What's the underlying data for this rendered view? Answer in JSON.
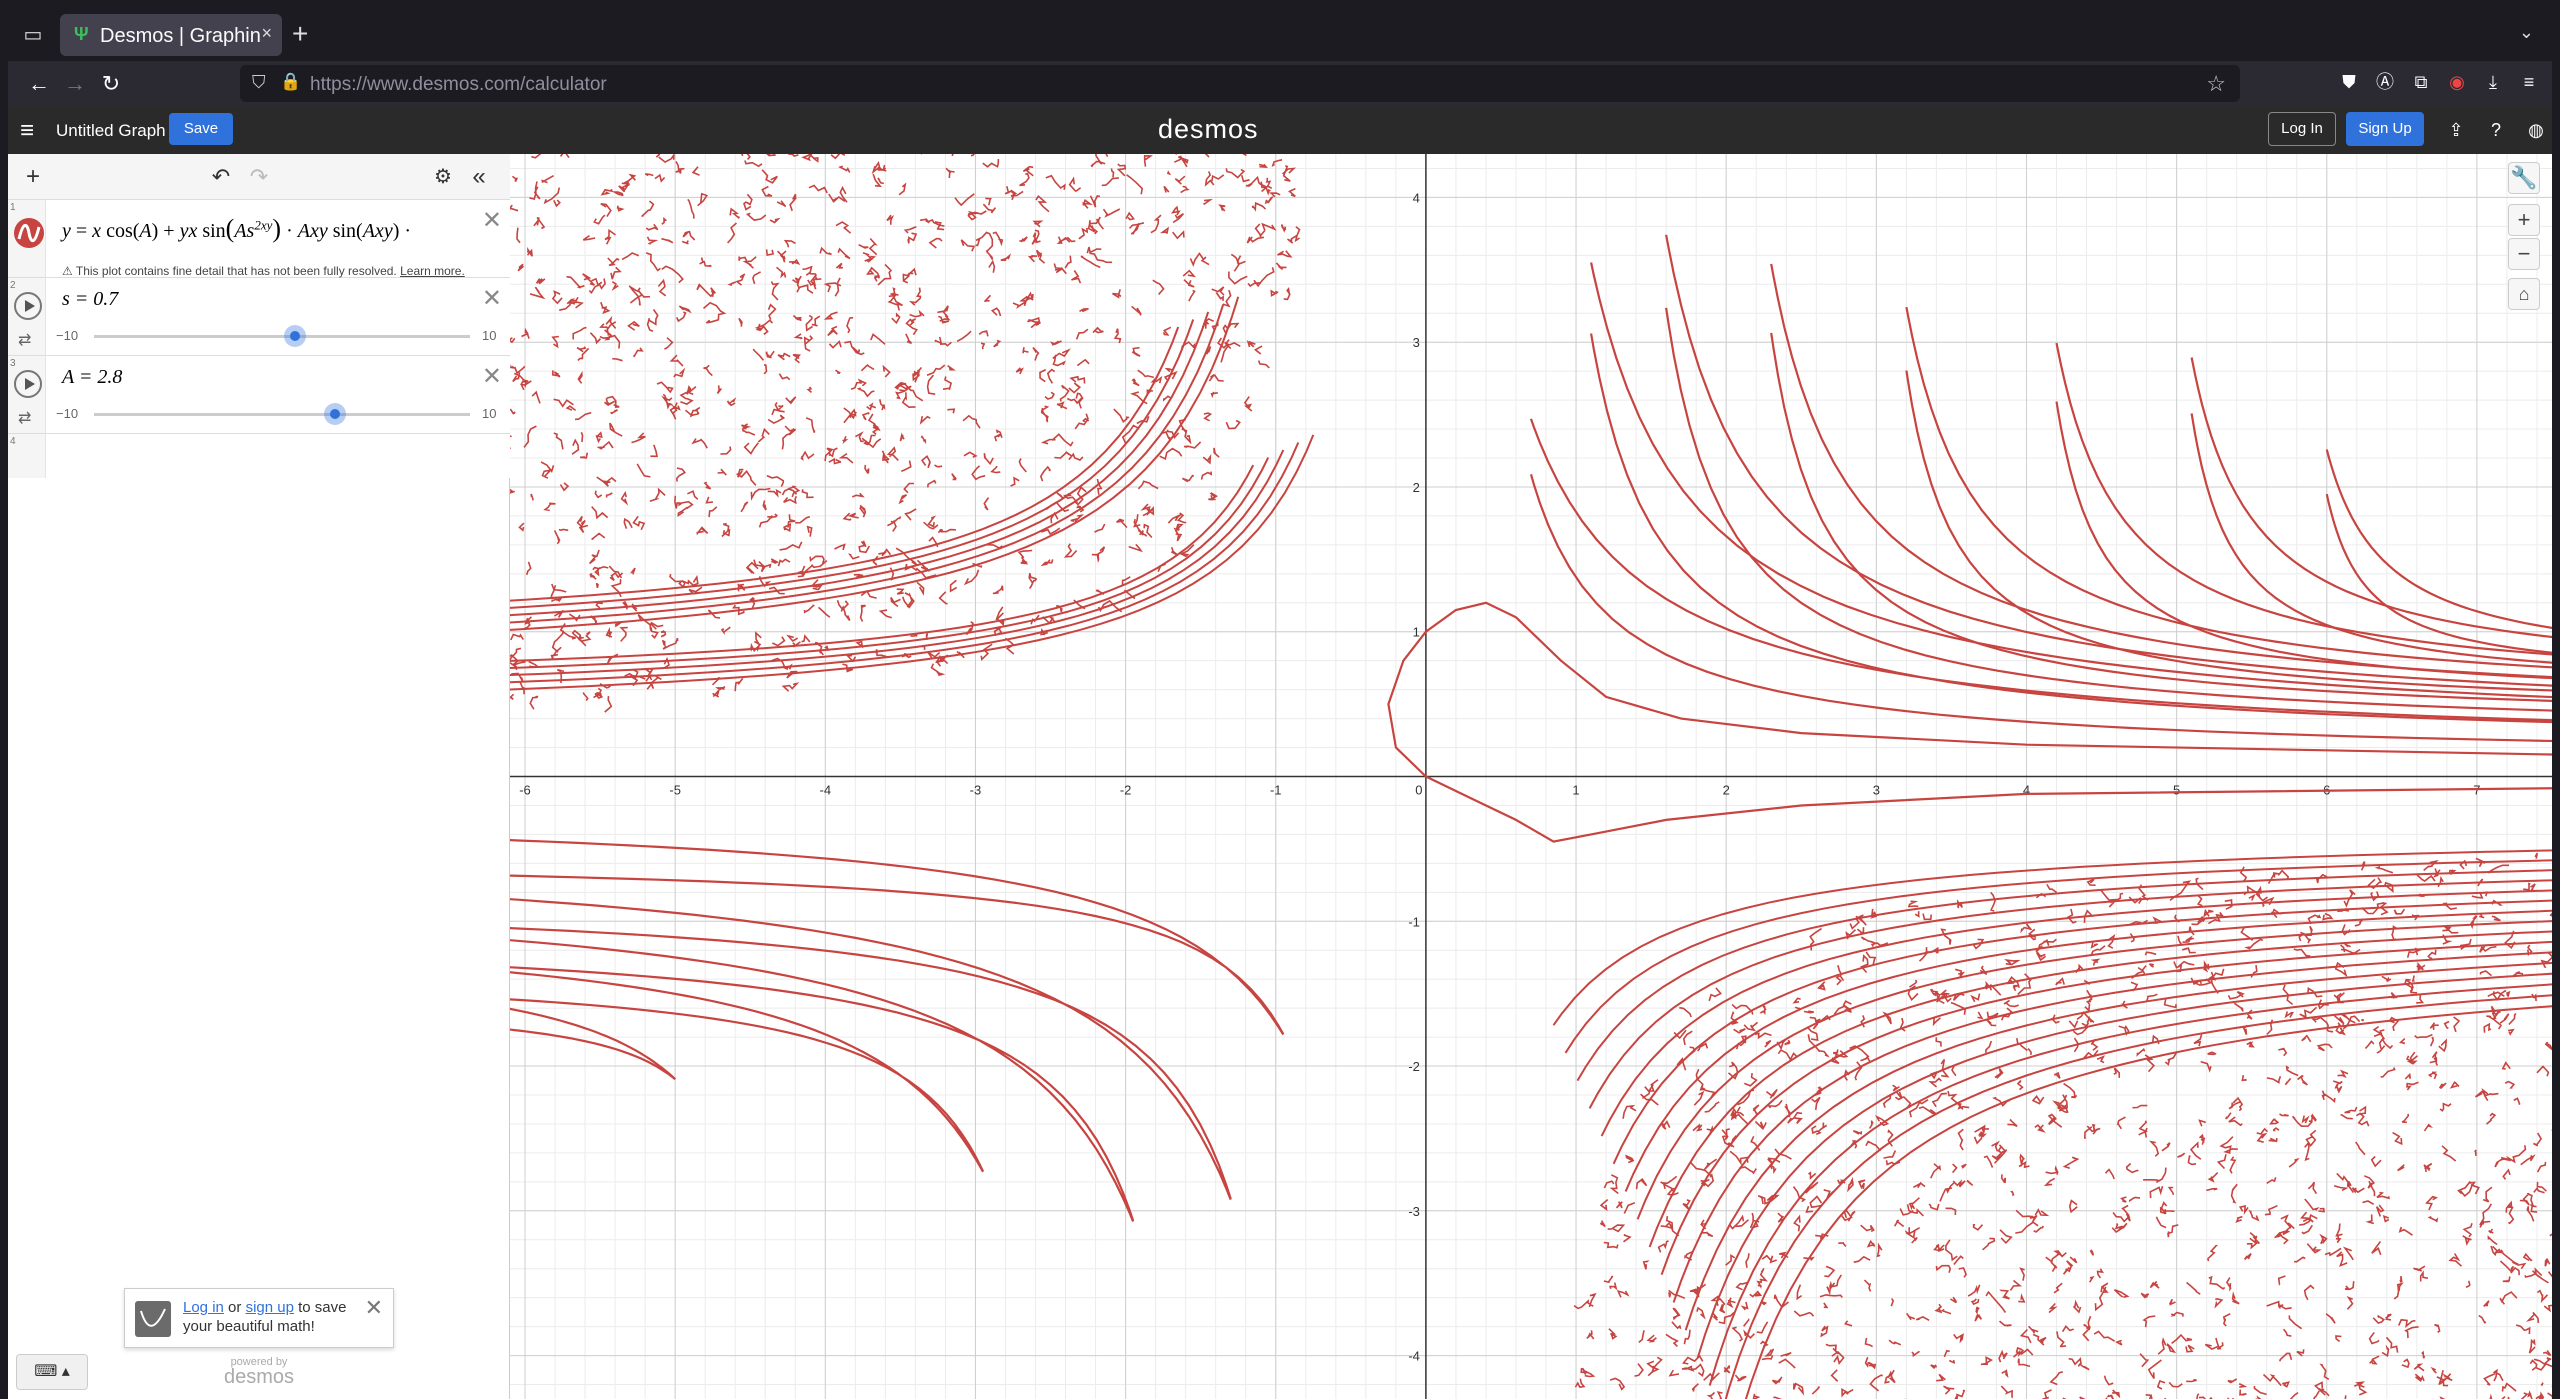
{
  "browser": {
    "tab_title": "Desmos | Graphing",
    "tab_close": "×",
    "new_tab": "+",
    "url_host": "https://www.desmos.com",
    "url_path": "/calculator"
  },
  "header": {
    "graph_title": "Untitled Graph",
    "save_label": "Save",
    "logo": "desmos",
    "login_label": "Log In",
    "signup_label": "Sign Up"
  },
  "expressions": [
    {
      "index": "1",
      "warning": "This plot contains fine detail that has not been fully resolved.",
      "learn_more": "Learn more.",
      "color": "#c74440"
    },
    {
      "index": "2",
      "label": "s = 0.7",
      "min": "−10",
      "max": "10",
      "value": 0.7
    },
    {
      "index": "3",
      "label": "A = 2.8",
      "min": "−10",
      "max": "10",
      "value": 2.8
    },
    {
      "index": "4"
    }
  ],
  "toast": {
    "login": "Log in",
    "or": " or ",
    "signup": "sign up",
    "rest1": " to save",
    "rest2": "your beautiful math!"
  },
  "powered": {
    "small": "powered by",
    "logo": "desmos"
  },
  "graph": {
    "x_range": [
      -6.1,
      7.5
    ],
    "y_range": [
      -4.3,
      4.3
    ],
    "x_ticks": [
      "-6",
      "-5",
      "-4",
      "-3",
      "-2",
      "-1",
      "0",
      "1",
      "2",
      "3",
      "4",
      "5",
      "6",
      "7"
    ],
    "y_ticks": [
      "4",
      "3",
      "2",
      "1",
      "-1",
      "-2",
      "-3",
      "-4"
    ],
    "curve_color": "#c74440"
  }
}
